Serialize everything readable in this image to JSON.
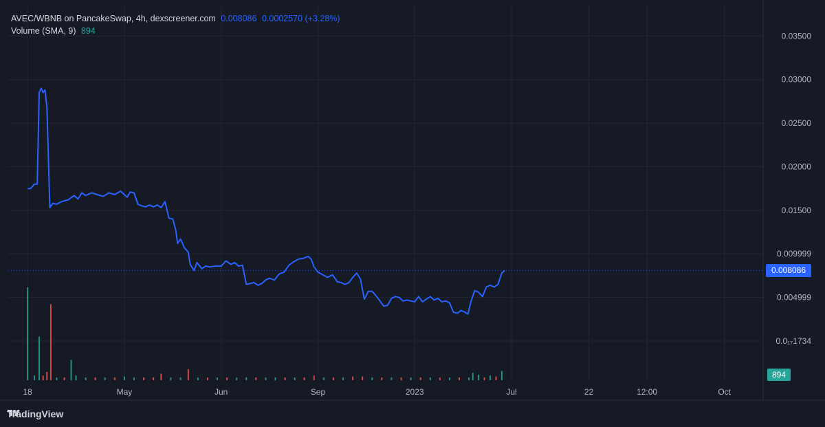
{
  "legend": {
    "pair_info": "AVEC/WBNB on PancakeSwap, 4h, dexscreener.com",
    "price": "0.008086",
    "change": "0.0002570 (+3.28%)",
    "volume_label": "Volume (SMA, 9)",
    "volume_value": "894"
  },
  "price_tag": "0.008086",
  "volume_tag": "894",
  "brand": "TradingView",
  "colors": {
    "background": "#161a25",
    "grid": "#232733",
    "line": "#2962ff",
    "volume_up": "#26a69a",
    "volume_down": "#ef5350",
    "text": "#b2b5be"
  },
  "chart_data": {
    "type": "line",
    "title": "",
    "xlabel": "",
    "ylabel": "",
    "y_ticks": [
      "0.03500",
      "0.03000",
      "0.02500",
      "0.02000",
      "0.01500",
      "0.009999",
      "0.004999",
      "0.0₁₇1734"
    ],
    "y_tick_values": [
      0.035,
      0.03,
      0.025,
      0.02,
      0.015,
      0.01,
      0.005,
      0.0
    ],
    "x_ticks": [
      "18",
      "May",
      "Jun",
      "Sep",
      "2023",
      "Jul",
      "22",
      "12:00",
      "Oct"
    ],
    "x_tick_positions": [
      0.0,
      1.0,
      2.0,
      3.0,
      4.0,
      5.0,
      5.8,
      6.4,
      7.2
    ],
    "ylim": [
      -0.0045,
      0.0385
    ],
    "xlim": [
      -0.2,
      7.6
    ],
    "current_price": 0.008086,
    "series": [
      {
        "values": [
          [
            0.0,
            0.0175
          ],
          [
            0.03,
            0.0175
          ],
          [
            0.07,
            0.018
          ],
          [
            0.1,
            0.018
          ],
          [
            0.12,
            0.0285
          ],
          [
            0.14,
            0.029
          ],
          [
            0.16,
            0.0285
          ],
          [
            0.18,
            0.0288
          ],
          [
            0.2,
            0.0268
          ],
          [
            0.23,
            0.0153
          ],
          [
            0.26,
            0.0158
          ],
          [
            0.3,
            0.0157
          ],
          [
            0.35,
            0.016
          ],
          [
            0.42,
            0.0162
          ],
          [
            0.48,
            0.0167
          ],
          [
            0.52,
            0.0163
          ],
          [
            0.56,
            0.017
          ],
          [
            0.6,
            0.0167
          ],
          [
            0.66,
            0.017
          ],
          [
            0.72,
            0.0168
          ],
          [
            0.78,
            0.0166
          ],
          [
            0.84,
            0.017
          ],
          [
            0.9,
            0.0168
          ],
          [
            0.96,
            0.0172
          ],
          [
            1.0,
            0.0168
          ],
          [
            1.03,
            0.0165
          ],
          [
            1.06,
            0.0171
          ],
          [
            1.1,
            0.017
          ],
          [
            1.14,
            0.0157
          ],
          [
            1.18,
            0.0155
          ],
          [
            1.22,
            0.0154
          ],
          [
            1.26,
            0.0156
          ],
          [
            1.3,
            0.0154
          ],
          [
            1.34,
            0.0156
          ],
          [
            1.38,
            0.0153
          ],
          [
            1.42,
            0.016
          ],
          [
            1.46,
            0.0141
          ],
          [
            1.5,
            0.014
          ],
          [
            1.53,
            0.0128
          ],
          [
            1.55,
            0.0112
          ],
          [
            1.58,
            0.0117
          ],
          [
            1.62,
            0.0107
          ],
          [
            1.66,
            0.0102
          ],
          [
            1.68,
            0.0088
          ],
          [
            1.72,
            0.0081
          ],
          [
            1.75,
            0.009
          ],
          [
            1.8,
            0.0083
          ],
          [
            1.84,
            0.0086
          ],
          [
            1.88,
            0.0085
          ],
          [
            1.94,
            0.0086
          ],
          [
            2.0,
            0.0086
          ],
          [
            2.05,
            0.0092
          ],
          [
            2.1,
            0.0088
          ],
          [
            2.14,
            0.009
          ],
          [
            2.18,
            0.0086
          ],
          [
            2.22,
            0.0087
          ],
          [
            2.26,
            0.0065
          ],
          [
            2.3,
            0.0066
          ],
          [
            2.34,
            0.0067
          ],
          [
            2.38,
            0.0064
          ],
          [
            2.42,
            0.0066
          ],
          [
            2.46,
            0.007
          ],
          [
            2.5,
            0.0072
          ],
          [
            2.55,
            0.007
          ],
          [
            2.6,
            0.0077
          ],
          [
            2.65,
            0.0079
          ],
          [
            2.7,
            0.0087
          ],
          [
            2.75,
            0.0091
          ],
          [
            2.8,
            0.0094
          ],
          [
            2.85,
            0.0095
          ],
          [
            2.9,
            0.0097
          ],
          [
            2.93,
            0.0094
          ],
          [
            2.96,
            0.0085
          ],
          [
            3.0,
            0.0079
          ],
          [
            3.05,
            0.0076
          ],
          [
            3.1,
            0.0073
          ],
          [
            3.15,
            0.0076
          ],
          [
            3.2,
            0.0068
          ],
          [
            3.24,
            0.0067
          ],
          [
            3.28,
            0.0065
          ],
          [
            3.32,
            0.0067
          ],
          [
            3.36,
            0.0073
          ],
          [
            3.4,
            0.0078
          ],
          [
            3.44,
            0.0071
          ],
          [
            3.46,
            0.0059
          ],
          [
            3.48,
            0.0048
          ],
          [
            3.52,
            0.0057
          ],
          [
            3.56,
            0.0057
          ],
          [
            3.6,
            0.0052
          ],
          [
            3.64,
            0.0046
          ],
          [
            3.68,
            0.004
          ],
          [
            3.72,
            0.0041
          ],
          [
            3.76,
            0.0049
          ],
          [
            3.8,
            0.0051
          ],
          [
            3.84,
            0.005
          ],
          [
            3.88,
            0.0046
          ],
          [
            3.92,
            0.0047
          ],
          [
            3.96,
            0.0046
          ],
          [
            4.0,
            0.0045
          ],
          [
            4.04,
            0.0051
          ],
          [
            4.08,
            0.0045
          ],
          [
            4.12,
            0.0048
          ],
          [
            4.16,
            0.0051
          ],
          [
            4.2,
            0.0047
          ],
          [
            4.24,
            0.0049
          ],
          [
            4.28,
            0.0045
          ],
          [
            4.32,
            0.0046
          ],
          [
            4.36,
            0.0044
          ],
          [
            4.4,
            0.0033
          ],
          [
            4.44,
            0.0032
          ],
          [
            4.48,
            0.0035
          ],
          [
            4.52,
            0.0033
          ],
          [
            4.55,
            0.0031
          ],
          [
            4.58,
            0.0045
          ],
          [
            4.62,
            0.0058
          ],
          [
            4.66,
            0.0056
          ],
          [
            4.7,
            0.0051
          ],
          [
            4.74,
            0.0062
          ],
          [
            4.78,
            0.0064
          ],
          [
            4.82,
            0.0062
          ],
          [
            4.86,
            0.0065
          ],
          [
            4.9,
            0.0078
          ],
          [
            4.93,
            0.0081
          ]
        ]
      }
    ],
    "volume": [
      {
        "x": 0.0,
        "h": 1.0,
        "dir": "up"
      },
      {
        "x": 0.07,
        "h": 0.05,
        "dir": "up"
      },
      {
        "x": 0.12,
        "h": 0.47,
        "dir": "up"
      },
      {
        "x": 0.16,
        "h": 0.05,
        "dir": "down"
      },
      {
        "x": 0.2,
        "h": 0.09,
        "dir": "down"
      },
      {
        "x": 0.24,
        "h": 0.82,
        "dir": "down"
      },
      {
        "x": 0.3,
        "h": 0.03,
        "dir": "up"
      },
      {
        "x": 0.38,
        "h": 0.03,
        "dir": "down"
      },
      {
        "x": 0.45,
        "h": 0.22,
        "dir": "up"
      },
      {
        "x": 0.5,
        "h": 0.05,
        "dir": "up"
      },
      {
        "x": 0.6,
        "h": 0.03,
        "dir": "up"
      },
      {
        "x": 0.7,
        "h": 0.03,
        "dir": "down"
      },
      {
        "x": 0.8,
        "h": 0.03,
        "dir": "up"
      },
      {
        "x": 0.9,
        "h": 0.03,
        "dir": "down"
      },
      {
        "x": 1.0,
        "h": 0.04,
        "dir": "up"
      },
      {
        "x": 1.1,
        "h": 0.03,
        "dir": "up"
      },
      {
        "x": 1.2,
        "h": 0.03,
        "dir": "down"
      },
      {
        "x": 1.3,
        "h": 0.03,
        "dir": "down"
      },
      {
        "x": 1.38,
        "h": 0.07,
        "dir": "down"
      },
      {
        "x": 1.48,
        "h": 0.03,
        "dir": "up"
      },
      {
        "x": 1.58,
        "h": 0.03,
        "dir": "up"
      },
      {
        "x": 1.66,
        "h": 0.12,
        "dir": "down"
      },
      {
        "x": 1.76,
        "h": 0.03,
        "dir": "up"
      },
      {
        "x": 1.86,
        "h": 0.03,
        "dir": "down"
      },
      {
        "x": 1.96,
        "h": 0.03,
        "dir": "up"
      },
      {
        "x": 2.06,
        "h": 0.03,
        "dir": "down"
      },
      {
        "x": 2.16,
        "h": 0.03,
        "dir": "up"
      },
      {
        "x": 2.26,
        "h": 0.03,
        "dir": "up"
      },
      {
        "x": 2.36,
        "h": 0.03,
        "dir": "down"
      },
      {
        "x": 2.46,
        "h": 0.03,
        "dir": "up"
      },
      {
        "x": 2.56,
        "h": 0.03,
        "dir": "up"
      },
      {
        "x": 2.66,
        "h": 0.03,
        "dir": "down"
      },
      {
        "x": 2.76,
        "h": 0.03,
        "dir": "up"
      },
      {
        "x": 2.86,
        "h": 0.03,
        "dir": "down"
      },
      {
        "x": 2.96,
        "h": 0.05,
        "dir": "down"
      },
      {
        "x": 3.06,
        "h": 0.03,
        "dir": "up"
      },
      {
        "x": 3.16,
        "h": 0.03,
        "dir": "down"
      },
      {
        "x": 3.26,
        "h": 0.03,
        "dir": "up"
      },
      {
        "x": 3.36,
        "h": 0.04,
        "dir": "down"
      },
      {
        "x": 3.46,
        "h": 0.04,
        "dir": "down"
      },
      {
        "x": 3.56,
        "h": 0.03,
        "dir": "up"
      },
      {
        "x": 3.66,
        "h": 0.03,
        "dir": "down"
      },
      {
        "x": 3.76,
        "h": 0.03,
        "dir": "up"
      },
      {
        "x": 3.86,
        "h": 0.03,
        "dir": "down"
      },
      {
        "x": 3.96,
        "h": 0.03,
        "dir": "up"
      },
      {
        "x": 4.06,
        "h": 0.03,
        "dir": "down"
      },
      {
        "x": 4.16,
        "h": 0.03,
        "dir": "up"
      },
      {
        "x": 4.26,
        "h": 0.03,
        "dir": "down"
      },
      {
        "x": 4.36,
        "h": 0.03,
        "dir": "up"
      },
      {
        "x": 4.46,
        "h": 0.03,
        "dir": "down"
      },
      {
        "x": 4.56,
        "h": 0.03,
        "dir": "up"
      },
      {
        "x": 4.6,
        "h": 0.08,
        "dir": "up"
      },
      {
        "x": 4.66,
        "h": 0.06,
        "dir": "up"
      },
      {
        "x": 4.72,
        "h": 0.03,
        "dir": "down"
      },
      {
        "x": 4.78,
        "h": 0.05,
        "dir": "up"
      },
      {
        "x": 4.84,
        "h": 0.04,
        "dir": "down"
      },
      {
        "x": 4.9,
        "h": 0.1,
        "dir": "up"
      }
    ]
  }
}
